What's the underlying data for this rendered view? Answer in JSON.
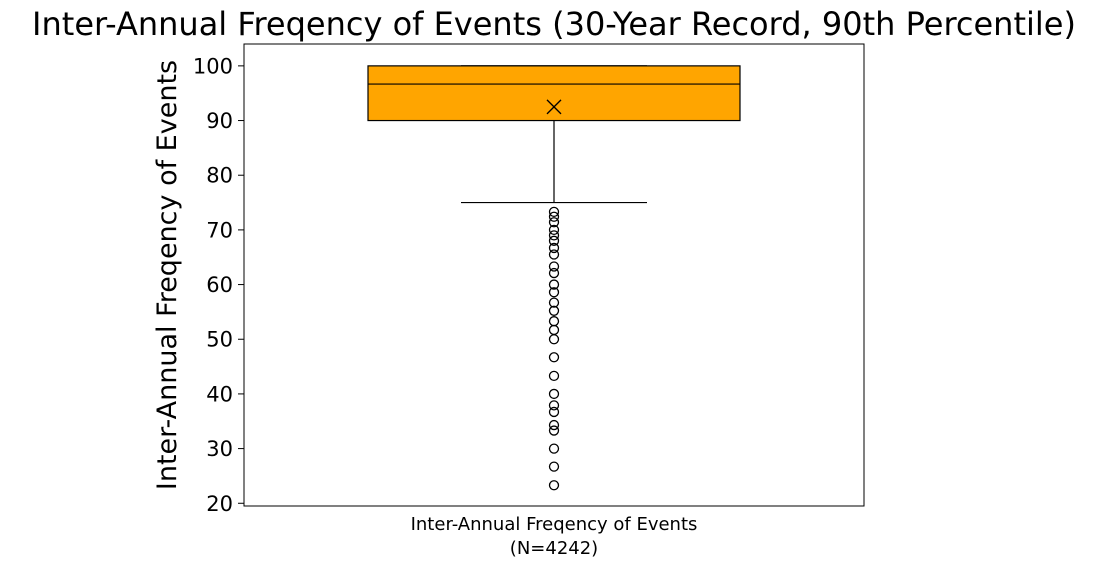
{
  "chart_data": {
    "type": "box",
    "title": "Inter-Annual Freqency of Events (30-Year Record, 90th Percentile)",
    "xlabel": "",
    "ylabel": "Inter-Annual Freqency of Events",
    "category_label_line1": "Inter-Annual Freqency of Events",
    "category_label_line2": "(N=4242)",
    "ylim": [
      19.5,
      104
    ],
    "yticks": [
      20,
      30,
      40,
      50,
      60,
      70,
      80,
      90,
      100
    ],
    "ytick_labels": [
      "20",
      "30",
      "40",
      "50",
      "60",
      "70",
      "80",
      "90",
      "100"
    ],
    "grid": false,
    "box": {
      "whisker_low": 75.0,
      "q1": 90.0,
      "median": 96.67,
      "q3": 100.0,
      "whisker_high": 100.0,
      "mean": 92.5,
      "fill_color": "#ffa500",
      "edge_color": "#000000"
    },
    "outliers": [
      23.3,
      26.7,
      30.0,
      33.3,
      34.3,
      36.7,
      37.9,
      40.0,
      43.3,
      46.7,
      50.0,
      51.7,
      53.3,
      55.2,
      56.7,
      58.6,
      60.0,
      62.1,
      63.3,
      65.5,
      66.7,
      68.0,
      69.0,
      70.0,
      71.4,
      72.4,
      73.3
    ]
  }
}
